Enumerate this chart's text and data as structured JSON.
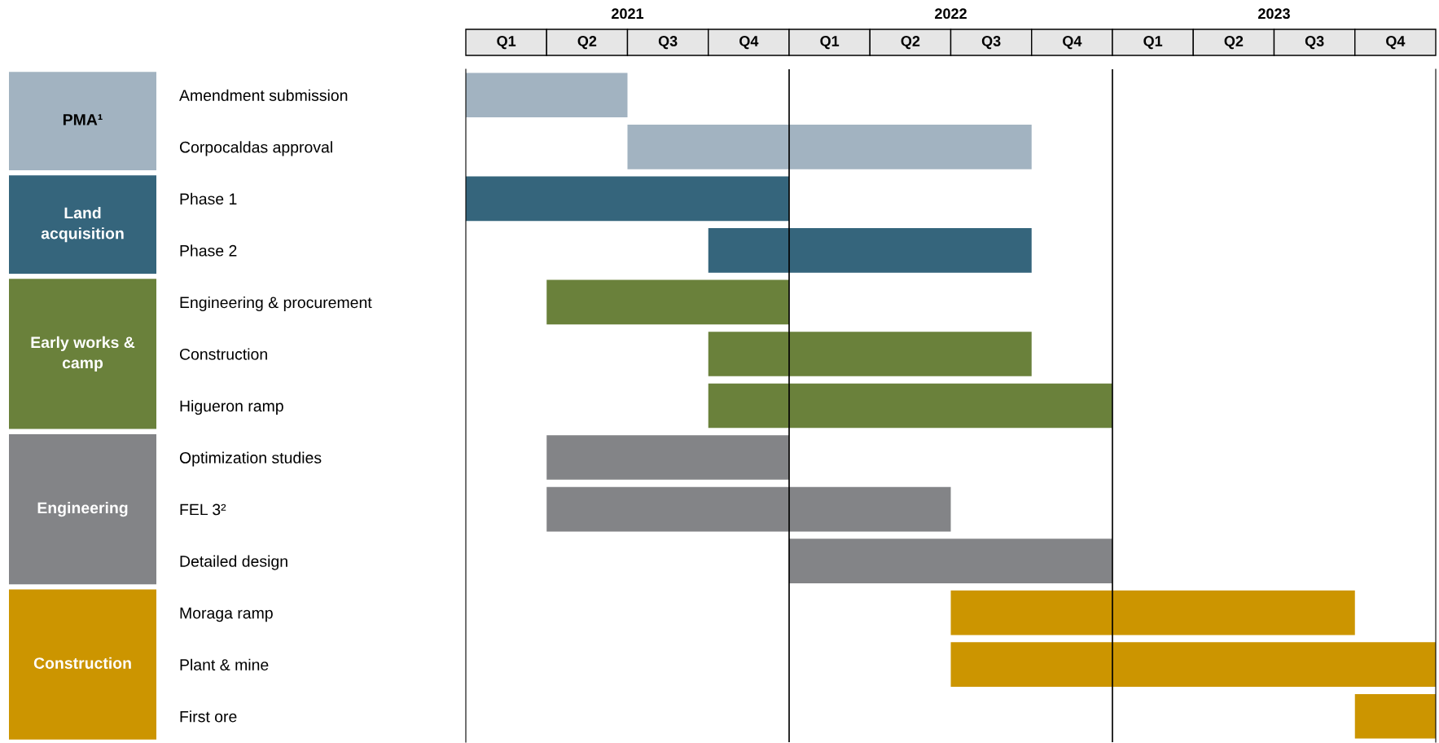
{
  "chart_data": {
    "type": "bar",
    "orientation": "horizontal",
    "categories": [
      "Amendment submission",
      "Corpocaldas approval",
      "Phase 1",
      "Phase 2",
      "Engineering & procurement",
      "Construction",
      "Higueron ramp",
      "Optimization studies",
      "FEL 3²",
      "Detailed design",
      "Moraga ramp",
      "Plant & mine",
      "First ore"
    ],
    "series": [
      {
        "color": "#a2b3c1",
        "base": [
          2021,
          2021.5,
          null,
          null,
          null,
          null,
          null,
          null,
          null,
          null,
          null,
          null,
          null
        ],
        "values": [
          0.5,
          1.25,
          null,
          null,
          null,
          null,
          null,
          null,
          null,
          null,
          null,
          null,
          null
        ]
      },
      {
        "color": "#35657c",
        "base": [
          null,
          null,
          2021,
          2021.75,
          null,
          null,
          null,
          null,
          null,
          null,
          null,
          null,
          null
        ],
        "values": [
          null,
          null,
          1,
          1,
          null,
          null,
          null,
          null,
          null,
          null,
          null,
          null,
          null
        ]
      },
      {
        "color": "#6a813b",
        "base": [
          null,
          null,
          null,
          null,
          2021.25,
          2021.75,
          2021.75,
          null,
          null,
          null,
          null,
          null,
          null
        ],
        "values": [
          null,
          null,
          null,
          null,
          0.75,
          1,
          1.25,
          null,
          null,
          null,
          null,
          null,
          null
        ]
      },
      {
        "color": "#838487",
        "base": [
          null,
          null,
          null,
          null,
          null,
          null,
          null,
          2021.25,
          2021.25,
          2022,
          null,
          null,
          null
        ],
        "values": [
          null,
          null,
          null,
          null,
          null,
          null,
          null,
          0.75,
          1.25,
          1,
          null,
          null,
          null
        ]
      },
      {
        "color": "#cc9500",
        "base": [
          null,
          null,
          null,
          null,
          null,
          null,
          null,
          null,
          null,
          null,
          2022.5,
          2022.5,
          2023.75
        ],
        "values": [
          null,
          null,
          null,
          null,
          null,
          null,
          null,
          null,
          null,
          null,
          1.25,
          1.5,
          0.25
        ]
      }
    ],
    "xlim": [
      2021,
      2024
    ],
    "xticks": [
      {
        "value": 2021.5,
        "label": "2021"
      },
      {
        "value": 2022.5,
        "label": "2022"
      },
      {
        "value": 2023.5,
        "label": "2023"
      }
    ],
    "annotations": [
      "PMA¹",
      "Land\nacquisition",
      "Early works &\ncamp",
      "Engineering",
      "Construction",
      "Q1",
      "Q2",
      "Q3",
      "Q4",
      "Q1",
      "Q2",
      "Q3",
      "Q4",
      "Q1",
      "Q2",
      "Q3",
      "Q4"
    ],
    "ref_lines": [
      {
        "axis": "x",
        "value": 2022,
        "color": "#000000"
      },
      {
        "axis": "x",
        "value": 2023,
        "color": "#000000"
      }
    ],
    "grid": false,
    "legend": false
  }
}
